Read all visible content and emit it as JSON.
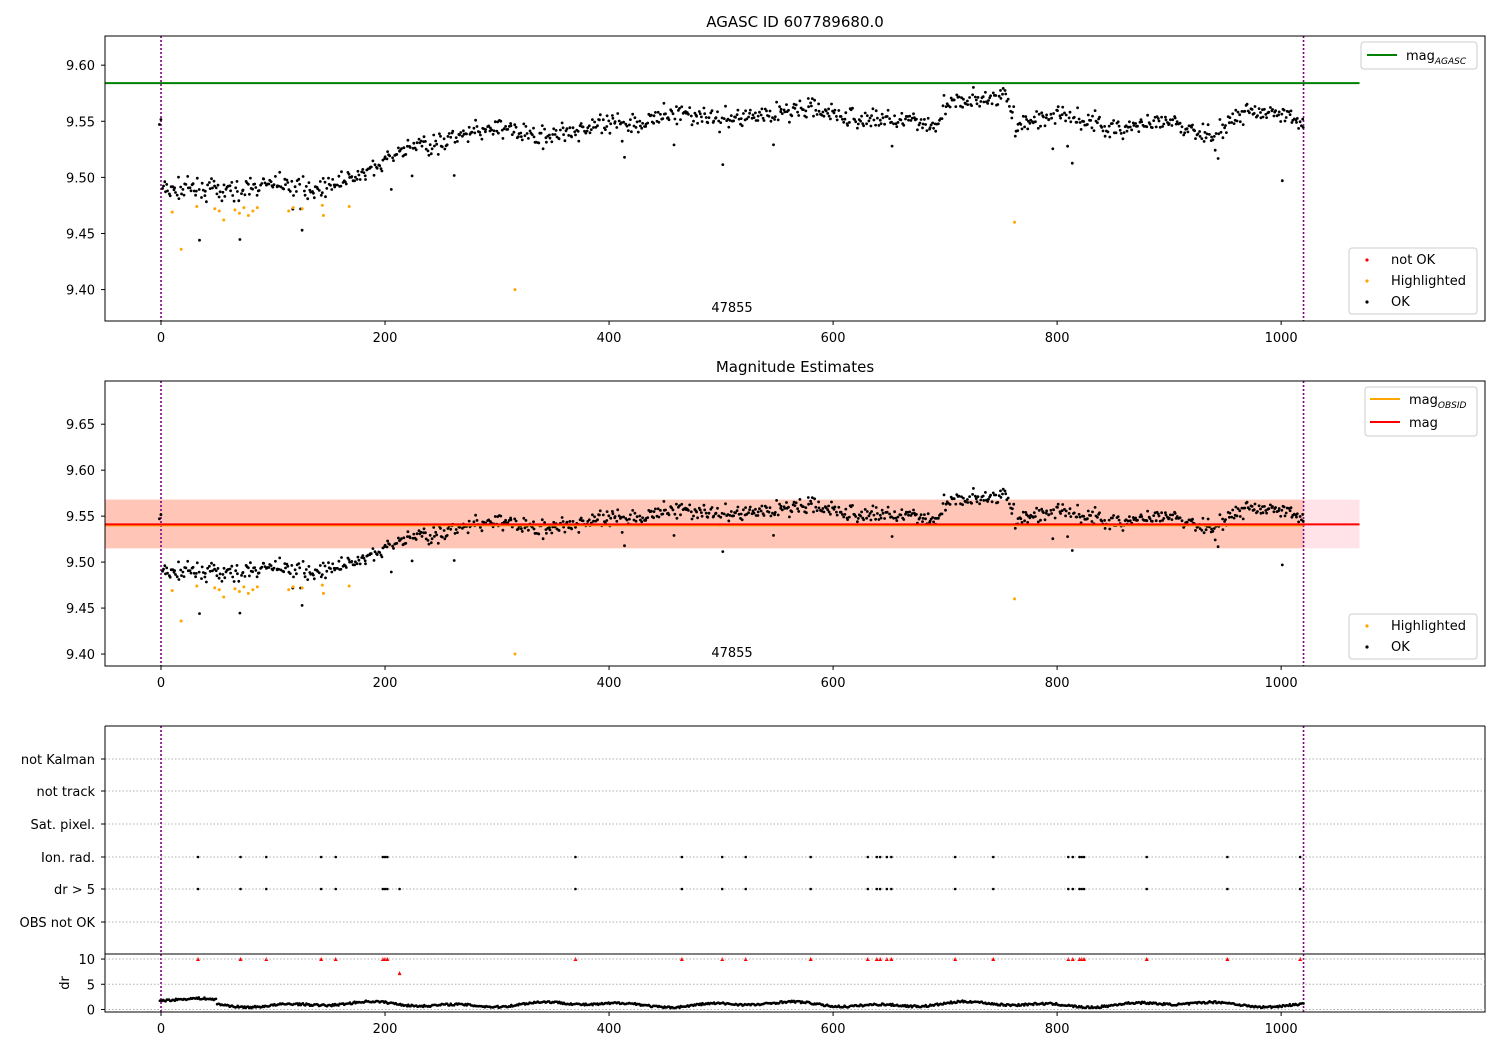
{
  "figure": {
    "background": "#ffffff"
  },
  "chart_data": [
    {
      "type": "scatter",
      "title": "AGASC ID 607789680.0",
      "xlabel": "",
      "ylabel": "",
      "xlim": [
        -50,
        1182
      ],
      "ylim": [
        9.372,
        9.626
      ],
      "x_ticks": [
        0,
        200,
        400,
        600,
        800,
        1000
      ],
      "y_ticks": [
        9.4,
        9.45,
        9.5,
        9.55,
        9.6
      ],
      "annotation": "47855",
      "vlines": [
        0,
        1020
      ],
      "hline": {
        "label": "mag",
        "label_sub": "AGASC",
        "value": 9.584,
        "color": "#008000"
      },
      "legend_lines_position": "upper right",
      "legend_points_position": "lower right",
      "series": [
        {
          "name": "not OK",
          "color": "#ff0000",
          "points": []
        },
        {
          "name": "Highlighted",
          "color": "#ffa500",
          "points": [
            [
              10,
              9.469
            ],
            [
              18,
              9.436
            ],
            [
              32,
              9.474
            ],
            [
              48,
              9.472
            ],
            [
              52,
              9.47
            ],
            [
              56,
              9.462
            ],
            [
              66,
              9.471
            ],
            [
              70,
              9.468
            ],
            [
              74,
              9.473
            ],
            [
              78,
              9.466
            ],
            [
              82,
              9.47
            ],
            [
              86,
              9.473
            ],
            [
              114,
              9.47
            ],
            [
              118,
              9.473
            ],
            [
              126,
              9.472
            ],
            [
              144,
              9.475
            ],
            [
              145,
              9.466
            ],
            [
              168,
              9.474
            ],
            [
              316,
              9.4
            ],
            [
              762,
              9.46
            ]
          ]
        },
        {
          "name": "OK",
          "color": "#000000",
          "trend": [
            [
              0,
              9.49
            ],
            [
              60,
              9.487
            ],
            [
              100,
              9.494
            ],
            [
              140,
              9.49
            ],
            [
              180,
              9.502
            ],
            [
              220,
              9.526
            ],
            [
              260,
              9.534
            ],
            [
              300,
              9.544
            ],
            [
              340,
              9.536
            ],
            [
              380,
              9.544
            ],
            [
              420,
              9.548
            ],
            [
              460,
              9.558
            ],
            [
              500,
              9.552
            ],
            [
              540,
              9.556
            ],
            [
              580,
              9.562
            ],
            [
              620,
              9.552
            ],
            [
              660,
              9.552
            ],
            [
              690,
              9.546
            ],
            [
              700,
              9.566
            ],
            [
              740,
              9.57
            ],
            [
              755,
              9.572
            ],
            [
              762,
              9.546
            ],
            [
              800,
              9.556
            ],
            [
              850,
              9.544
            ],
            [
              900,
              9.548
            ],
            [
              940,
              9.536
            ],
            [
              960,
              9.556
            ],
            [
              1000,
              9.558
            ],
            [
              1020,
              9.546
            ]
          ]
        }
      ]
    },
    {
      "type": "scatter",
      "title": "Magnitude Estimates",
      "xlabel": "",
      "ylabel": "",
      "xlim": [
        -50,
        1182
      ],
      "ylim": [
        9.387,
        9.697
      ],
      "x_ticks": [
        0,
        200,
        400,
        600,
        800,
        1000
      ],
      "y_ticks": [
        9.4,
        9.45,
        9.5,
        9.55,
        9.6,
        9.65
      ],
      "annotation": "47855",
      "vlines": [
        0,
        1020
      ],
      "lines": [
        {
          "label": "mag",
          "label_sub": "OBSID",
          "value": 9.54,
          "color": "#ffa500",
          "band": [
            9.515,
            9.568
          ],
          "band_color": "#ffa07a",
          "x_range": [
            -50,
            1020
          ]
        },
        {
          "label": "mag",
          "label_sub": "",
          "value": 9.541,
          "color": "#ff0000",
          "band": [
            9.515,
            9.568
          ],
          "band_color": "#ffc0cb",
          "x_range": [
            -50,
            1070
          ]
        }
      ],
      "legend_lines_position": "upper right",
      "legend_points_position": "lower right",
      "series": [
        {
          "name": "Highlighted",
          "color": "#ffa500"
        },
        {
          "name": "OK",
          "color": "#000000"
        }
      ]
    },
    {
      "type": "scatter",
      "title": "",
      "xlim": [
        -50,
        1182
      ],
      "x_ticks": [
        0,
        200,
        400,
        600,
        800,
        1000
      ],
      "vlines": [
        0,
        1020
      ],
      "flag_rows": [
        "not Kalman",
        "not track",
        "Sat. pixel.",
        "Ion. rad.",
        "dr > 5",
        "OBS not OK"
      ],
      "flag_events": [
        33,
        71,
        94,
        143,
        156,
        198,
        200,
        202,
        370,
        465,
        501,
        522,
        580,
        631,
        639,
        642,
        648,
        652,
        709,
        743,
        810,
        814,
        820,
        822,
        824,
        880,
        952,
        1017
      ],
      "flag_events_extra_dr": [
        213
      ],
      "dr_panel": {
        "ylabel": "dr",
        "ylim": [
          -0.5,
          11
        ],
        "y_ticks": [
          0,
          5,
          10
        ],
        "clip_value": 10,
        "outlier": [
          213,
          7.2
        ],
        "baseline_level": 1.0
      }
    }
  ]
}
